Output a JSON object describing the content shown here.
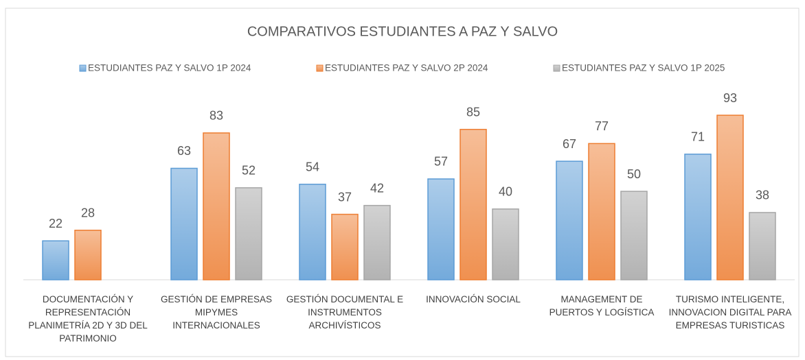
{
  "chart_data": {
    "type": "bar",
    "title": "COMPARATIVOS ESTUDIANTES A PAZ Y SALVO",
    "categories": [
      "DOCUMENTACIÓN Y REPRESENTACIÓN PLANIMETRÍA 2D Y 3D DEL PATRIMONIO",
      "GESTIÓN DE EMPRESAS MIPYMES INTERNACIONALES",
      "GESTIÓN DOCUMENTAL E INSTRUMENTOS ARCHIVÍSTICOS",
      "INNOVACIÓN SOCIAL",
      "MANAGEMENT DE PUERTOS Y LOGÍSTICA",
      "TURISMO INTELIGENTE, INNOVACION DIGITAL PARA EMPRESAS TURISTICAS"
    ],
    "series": [
      {
        "name": "ESTUDIANTES PAZ Y SALVO 1P 2024",
        "color": "#5b9bd5",
        "values": [
          22,
          63,
          54,
          57,
          67,
          71
        ]
      },
      {
        "name": "ESTUDIANTES PAZ Y SALVO 2P 2024",
        "color": "#ed7d31",
        "values": [
          28,
          83,
          37,
          85,
          77,
          93
        ]
      },
      {
        "name": "ESTUDIANTES PAZ Y SALVO 1P 2025",
        "color": "#a5a5a5",
        "values": [
          null,
          52,
          42,
          40,
          50,
          38
        ]
      }
    ],
    "ylim": [
      0,
      100
    ],
    "legend": "top"
  }
}
